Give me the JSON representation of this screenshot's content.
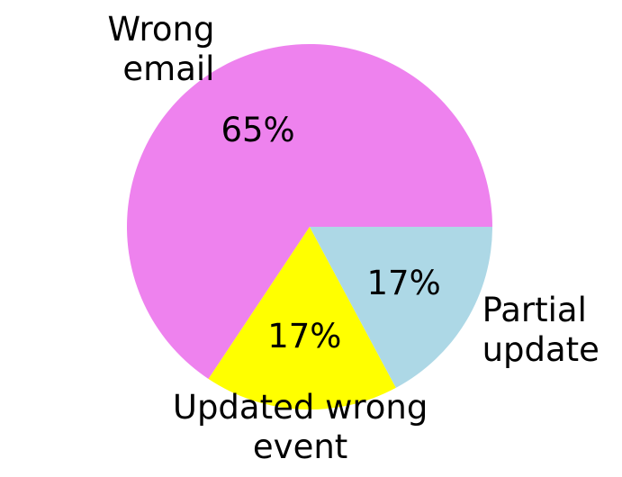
{
  "chart_data": {
    "type": "pie",
    "categories": [
      "Wrong\nemail",
      "Updated wrong\nevent",
      "Partial\nupdate"
    ],
    "values": [
      65,
      17,
      17
    ],
    "value_labels": [
      "65%",
      "17%",
      "17%"
    ],
    "colors": [
      "#ee82ee",
      "#ffff00",
      "#add8e6"
    ],
    "start_angle": 0
  }
}
